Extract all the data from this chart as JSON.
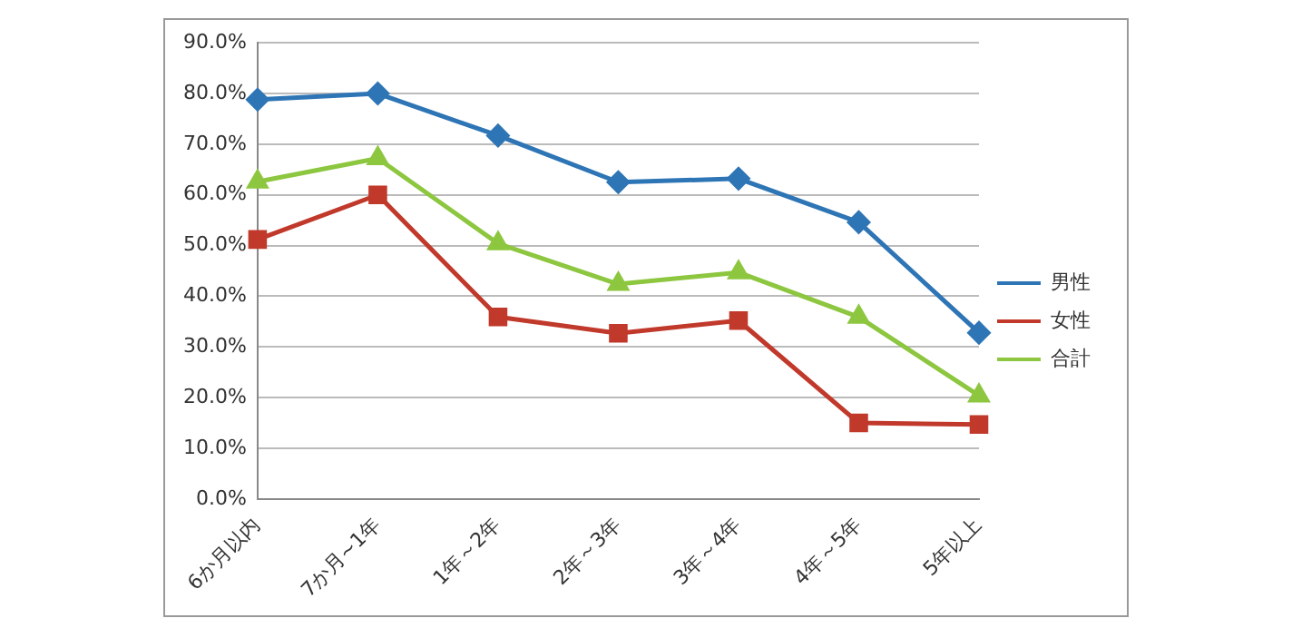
{
  "chart_data": {
    "type": "line",
    "categories": [
      "6か月以内",
      "7か月~1年",
      "1年～2年",
      "2年～3年",
      "3年～4年",
      "4年～5年",
      "5年以上"
    ],
    "series": [
      {
        "name": "男性",
        "color": "#2e75b6",
        "marker": "diamond",
        "values": [
          78.8,
          80.0,
          71.7,
          62.5,
          63.2,
          54.6,
          32.8
        ]
      },
      {
        "name": "女性",
        "color": "#c0392b",
        "marker": "square",
        "values": [
          51.2,
          60.0,
          35.9,
          32.7,
          35.2,
          15.0,
          14.7
        ]
      },
      {
        "name": "合計",
        "color": "#8dc63f",
        "marker": "triangle",
        "values": [
          62.6,
          67.2,
          50.4,
          42.4,
          44.7,
          35.9,
          20.4
        ]
      }
    ],
    "ylim": [
      0,
      90
    ],
    "yticks": [
      {
        "value": 0,
        "label": "0.0%"
      },
      {
        "value": 10,
        "label": "10.0%"
      },
      {
        "value": 20,
        "label": "20.0%"
      },
      {
        "value": 30,
        "label": "30.0%"
      },
      {
        "value": 40,
        "label": "40.0%"
      },
      {
        "value": 50,
        "label": "50.0%"
      },
      {
        "value": 60,
        "label": "60.0%"
      },
      {
        "value": 70,
        "label": "70.0%"
      },
      {
        "value": 80,
        "label": "80.0%"
      },
      {
        "value": 90,
        "label": "90.0%"
      }
    ],
    "grid": "y",
    "legend": "right",
    "line_style": "solid"
  }
}
